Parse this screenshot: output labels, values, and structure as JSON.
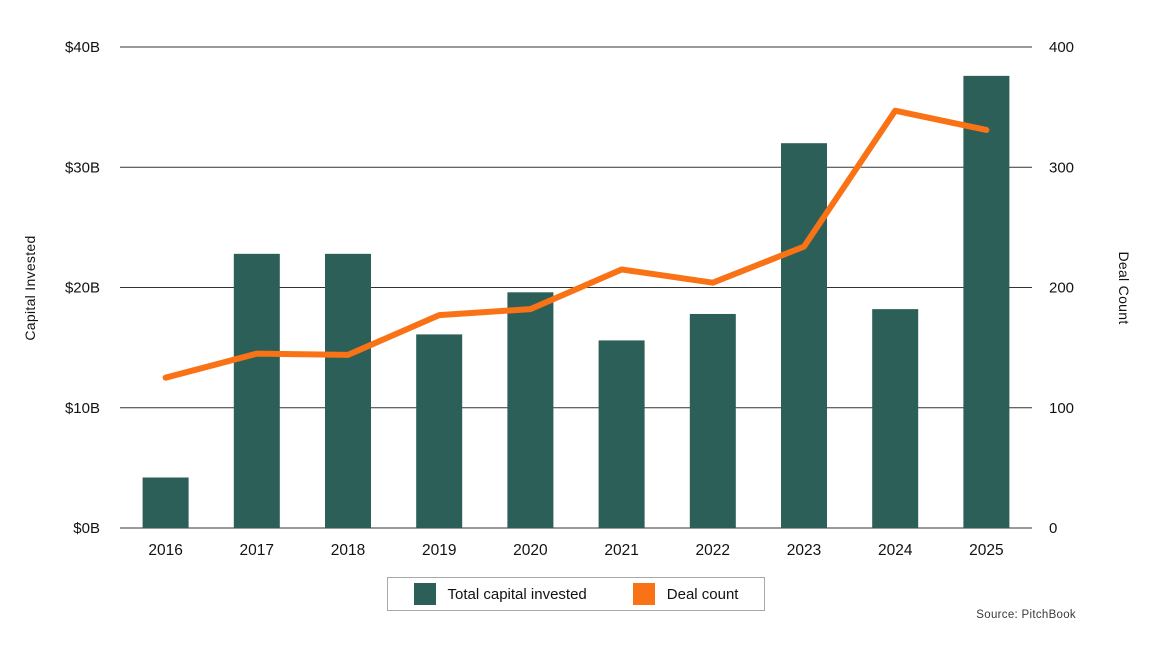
{
  "chart_data": {
    "type": "bar",
    "subtype": "combo-bar-line",
    "categories": [
      "2016",
      "2017",
      "2018",
      "2019",
      "2020",
      "2021",
      "2022",
      "2023",
      "2024",
      "2025"
    ],
    "series": [
      {
        "name": "Total capital invested",
        "type": "bar",
        "axis": "left",
        "color": "#2b5f58",
        "values": [
          4.2,
          22.8,
          22.8,
          16.1,
          19.6,
          15.6,
          17.8,
          32.0,
          18.2,
          37.6
        ]
      },
      {
        "name": "Deal count",
        "type": "line",
        "axis": "right",
        "color": "#f97316",
        "values": [
          125,
          145,
          144,
          177,
          182,
          215,
          204,
          234,
          347,
          331
        ]
      }
    ],
    "left_axis": {
      "label": "Capital Invested",
      "min": 0,
      "max": 40,
      "ticks": [
        "$0B",
        "$10B",
        "$20B",
        "$30B",
        "$40B"
      ]
    },
    "right_axis": {
      "label": "Deal Count",
      "min": 0,
      "max": 400,
      "ticks": [
        "0",
        "100",
        "200",
        "300",
        "400"
      ]
    },
    "grid": true,
    "legend_position": "bottom",
    "source": "Source: PitchBook",
    "gridline_color": "#333333",
    "text_color": "#121212"
  }
}
